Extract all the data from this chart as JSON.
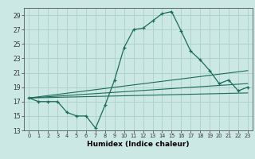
{
  "xlabel": "Humidex (Indice chaleur)",
  "bg_color": "#cce8e4",
  "grid_color": "#aacfcc",
  "line_color": "#1a6b5a",
  "xlim": [
    -0.5,
    23.5
  ],
  "ylim": [
    13,
    30
  ],
  "xticks": [
    0,
    1,
    2,
    3,
    4,
    5,
    6,
    7,
    8,
    9,
    10,
    11,
    12,
    13,
    14,
    15,
    16,
    17,
    18,
    19,
    20,
    21,
    22,
    23
  ],
  "yticks": [
    13,
    15,
    17,
    19,
    21,
    23,
    25,
    27,
    29
  ],
  "main_line": {
    "x": [
      0,
      1,
      2,
      3,
      4,
      5,
      6,
      7,
      8,
      9,
      10,
      11,
      12,
      13,
      14,
      15,
      16,
      17,
      18,
      19,
      20,
      21,
      22,
      23
    ],
    "y": [
      17.5,
      17,
      17,
      17,
      15.5,
      15,
      15,
      13.3,
      16.5,
      20,
      24.5,
      27,
      27.2,
      28.2,
      29.2,
      29.5,
      26.8,
      24,
      22.8,
      21.3,
      19.5,
      20,
      18.5,
      19
    ]
  },
  "flat_lines": [
    {
      "x": [
        0,
        23
      ],
      "y": [
        17.5,
        21.3
      ]
    },
    {
      "x": [
        0,
        23
      ],
      "y": [
        17.5,
        19.5
      ]
    },
    {
      "x": [
        0,
        23
      ],
      "y": [
        17.5,
        18.2
      ]
    }
  ]
}
